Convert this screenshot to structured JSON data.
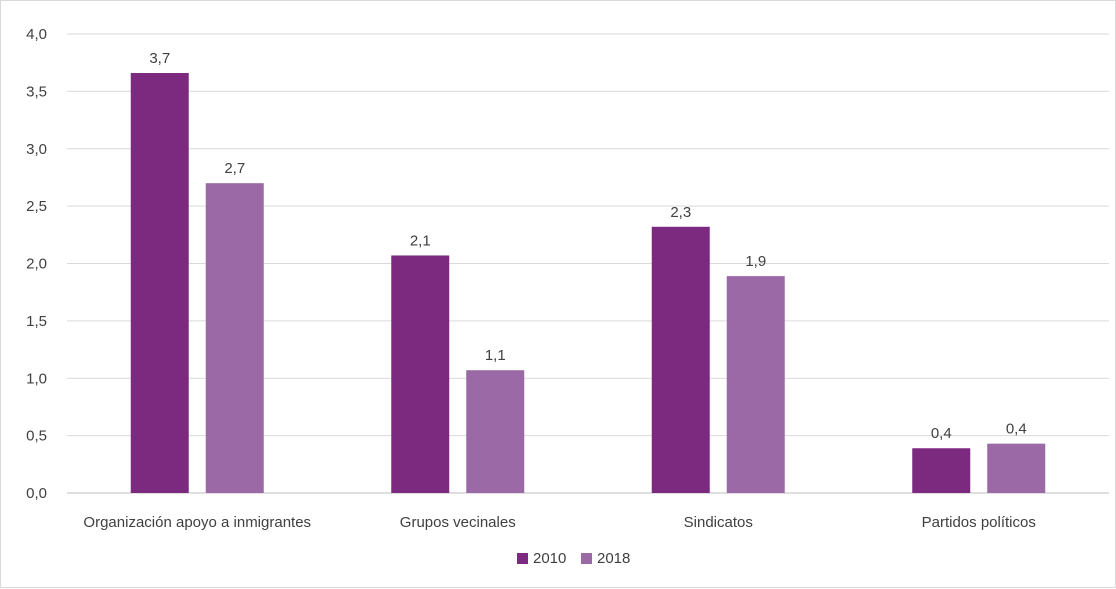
{
  "chart_data": {
    "type": "bar",
    "categories": [
      "Organización apoyo a inmigrantes",
      "Grupos vecinales",
      "Sindicatos",
      "Partidos políticos"
    ],
    "series": [
      {
        "name": "2010",
        "color": "#7b2a7f",
        "values": [
          3.66,
          2.07,
          2.32,
          0.39
        ],
        "labels": [
          "3,7",
          "2,1",
          "2,3",
          "0,4"
        ]
      },
      {
        "name": "2018",
        "color": "#9b6aa6",
        "values": [
          2.7,
          1.07,
          1.89,
          0.43
        ],
        "labels": [
          "2,7",
          "1,1",
          "1,9",
          "0,4"
        ]
      }
    ],
    "ylim": [
      0,
      4
    ],
    "yticks": [
      0,
      0.5,
      1,
      1.5,
      2,
      2.5,
      3,
      3.5,
      4
    ],
    "ytick_labels": [
      "0,0",
      "0,5",
      "1,0",
      "1,5",
      "2,0",
      "2,5",
      "3,0",
      "3,5",
      "4,0"
    ],
    "grid": true,
    "legend": "bottom-center"
  }
}
